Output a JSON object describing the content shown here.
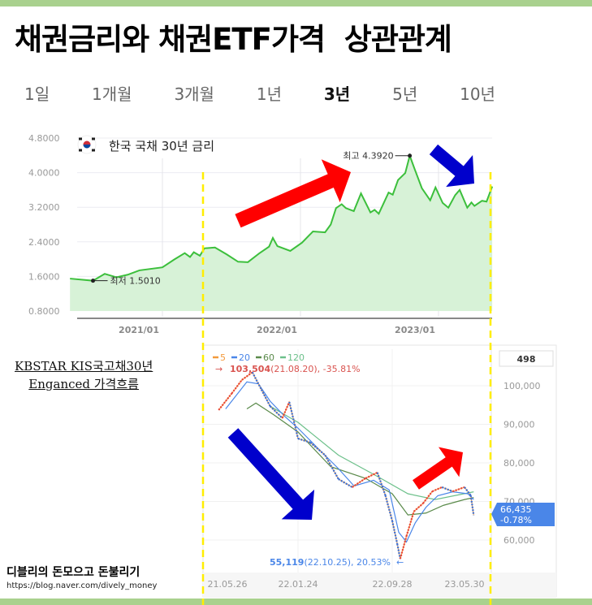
{
  "title": "채권금리와 채권ETF가격  상관관계",
  "tabs": [
    {
      "label": "1일",
      "active": false
    },
    {
      "label": "1개월",
      "active": false
    },
    {
      "label": "3개월",
      "active": false
    },
    {
      "label": "1년",
      "active": false
    },
    {
      "label": "3년",
      "active": true
    },
    {
      "label": "5년",
      "active": false
    },
    {
      "label": "10년",
      "active": false
    }
  ],
  "etf_label": {
    "line1": "KBSTAR KIS국고채30년",
    "line2": "Enganced 가격흐름"
  },
  "footer": {
    "title": "디블리의 돈모으고 돈불리기",
    "url": "https://blog.naver.com/dively_money"
  },
  "colors": {
    "bar": "#a9d18e",
    "rate_line": "#3cbf3c",
    "rate_fill": "#d7f2d7",
    "guide": "#ffee00",
    "up_arrow": "#ff0000",
    "down_arrow": "#0000cc"
  },
  "chart_data": [
    {
      "type": "area",
      "legend": "한국 국채 30년 금리",
      "flag_icon": "korea-flag-icon",
      "ylim": [
        0.8,
        4.8
      ],
      "yticks": [
        "4.8000",
        "4.0000",
        "3.2000",
        "2.4000",
        "1.6000",
        "0.8000"
      ],
      "xticks": [
        "2021/01",
        "2022/01",
        "2023/01"
      ],
      "grid": true,
      "annotations": {
        "max": "최고 4.3920",
        "min": "최저 1.5010"
      },
      "points": [
        [
          "2020-05",
          1.55
        ],
        [
          "2020-07",
          1.501
        ],
        [
          "2020-08",
          1.66
        ],
        [
          "2020-09",
          1.58
        ],
        [
          "2020-10",
          1.64
        ],
        [
          "2020-11",
          1.74
        ],
        [
          "2021-01",
          1.81
        ],
        [
          "2021-02",
          1.99
        ],
        [
          "2021-03",
          2.14
        ],
        [
          "2021-03-15",
          2.05
        ],
        [
          "2021-03-25",
          2.16
        ],
        [
          "2021-04-10",
          2.08
        ],
        [
          "2021-04-22",
          2.25
        ],
        [
          "2021-05-20",
          2.27
        ],
        [
          "2021-06-20",
          2.11
        ],
        [
          "2021-07-20",
          1.94
        ],
        [
          "2021-08-15",
          1.93
        ],
        [
          "2021-09-15",
          2.14
        ],
        [
          "2021-10-10",
          2.29
        ],
        [
          "2021-10-20",
          2.49
        ],
        [
          "2021-11-01",
          2.3
        ],
        [
          "2021-12-05",
          2.19
        ],
        [
          "2022-01-05",
          2.38
        ],
        [
          "2022-02-03",
          2.64
        ],
        [
          "2022-03-07",
          2.62
        ],
        [
          "2022-03-22",
          2.8
        ],
        [
          "2022-04-05",
          3.18
        ],
        [
          "2022-04-20",
          3.27
        ],
        [
          "2022-05-01",
          3.18
        ],
        [
          "2022-05-22",
          3.11
        ],
        [
          "2022-06-10",
          3.52
        ],
        [
          "2022-07-05",
          3.08
        ],
        [
          "2022-07-16",
          3.14
        ],
        [
          "2022-07-27",
          3.05
        ],
        [
          "2022-08-22",
          3.54
        ],
        [
          "2022-09-02",
          3.49
        ],
        [
          "2022-09-16",
          3.83
        ],
        [
          "2022-10-05",
          3.99
        ],
        [
          "2022-10-17",
          4.392
        ],
        [
          "2022-10-30",
          4.08
        ],
        [
          "2022-11-18",
          3.64
        ],
        [
          "2022-12-10",
          3.36
        ],
        [
          "2022-12-24",
          3.66
        ],
        [
          "2023-01-12",
          3.3
        ],
        [
          "2023-01-27",
          3.19
        ],
        [
          "2023-02-14",
          3.48
        ],
        [
          "2023-02-26",
          3.6
        ],
        [
          "2023-03-18",
          3.19
        ],
        [
          "2023-03-29",
          3.31
        ],
        [
          "2023-04-06",
          3.23
        ],
        [
          "2023-04-26",
          3.35
        ],
        [
          "2023-05-08",
          3.33
        ],
        [
          "2023-05-23",
          3.68
        ]
      ]
    },
    {
      "type": "line",
      "legend": [
        {
          "label": "5",
          "color": "#f39a3c"
        },
        {
          "label": "20",
          "color": "#4a86e8"
        },
        {
          "label": "60",
          "color": "#5a8a4a"
        },
        {
          "label": "120",
          "color": "#6cc08a"
        }
      ],
      "max_note": {
        "value": "103,504",
        "rest": "(21.08.20), -35.81%"
      },
      "min_note": {
        "value": "55,119",
        "rest": "(22.10.25), 20.53%"
      },
      "volume_box": "498",
      "current": {
        "price": "66,435",
        "change": "-0.78%"
      },
      "ylim": [
        50000,
        105000
      ],
      "yticks": [
        "100,000",
        "90,000",
        "80,000",
        "70,000",
        "60,000"
      ],
      "xticks": [
        [
          "21.05.26",
          "2021-05-26"
        ],
        [
          "22.01.24",
          "2022-01-24"
        ],
        [
          "22.09.28",
          "2022-09-28"
        ],
        [
          "23.05.30",
          "2023-05-30"
        ]
      ],
      "price": [
        [
          "2021-04-26",
          93700
        ],
        [
          "2021-06-10",
          98000
        ],
        [
          "2021-07-15",
          101500
        ],
        [
          "2021-08-20",
          103504
        ],
        [
          "2021-09-20",
          99000
        ],
        [
          "2021-10-20",
          94700
        ],
        [
          "2021-12-01",
          91600
        ],
        [
          "2021-12-25",
          95800
        ],
        [
          "2022-01-24",
          86300
        ],
        [
          "2022-02-25",
          85300
        ],
        [
          "2022-04-05",
          82000
        ],
        [
          "2022-05-10",
          75800
        ],
        [
          "2022-06-15",
          73700
        ],
        [
          "2022-07-20",
          76000
        ],
        [
          "2022-08-20",
          77500
        ],
        [
          "2022-09-10",
          71600
        ],
        [
          "2022-09-28",
          65000
        ],
        [
          "2022-10-15",
          59000
        ],
        [
          "2022-10-25",
          55119
        ],
        [
          "2022-11-15",
          61000
        ],
        [
          "2022-12-10",
          67400
        ],
        [
          "2023-01-10",
          69500
        ],
        [
          "2023-02-10",
          72600
        ],
        [
          "2023-03-15",
          73700
        ],
        [
          "2023-04-20",
          72600
        ],
        [
          "2023-05-30",
          73700
        ],
        [
          "2023-06-20",
          71600
        ],
        [
          "2023-06-30",
          66435
        ]
      ],
      "ma20": [
        [
          "2021-05-20",
          94000
        ],
        [
          "2021-08-01",
          101000
        ],
        [
          "2021-09-10",
          100500
        ],
        [
          "2021-10-20",
          96000
        ],
        [
          "2021-12-10",
          92000
        ],
        [
          "2022-01-24",
          89000
        ],
        [
          "2022-03-15",
          84000
        ],
        [
          "2022-05-10",
          78500
        ],
        [
          "2022-06-20",
          74000
        ],
        [
          "2022-08-10",
          75500
        ],
        [
          "2022-09-20",
          73000
        ],
        [
          "2022-10-20",
          62000
        ],
        [
          "2022-11-15",
          59500
        ],
        [
          "2022-12-15",
          64500
        ],
        [
          "2023-01-20",
          68500
        ],
        [
          "2023-03-01",
          71500
        ],
        [
          "2023-04-20",
          72500
        ],
        [
          "2023-06-10",
          72000
        ],
        [
          "2023-06-30",
          70500
        ]
      ],
      "ma60": [
        [
          "2021-08-01",
          94000
        ],
        [
          "2021-09-01",
          95500
        ],
        [
          "2021-11-01",
          92500
        ],
        [
          "2022-01-24",
          88000
        ],
        [
          "2022-04-20",
          79000
        ],
        [
          "2022-07-20",
          76000
        ],
        [
          "2022-09-28",
          72000
        ],
        [
          "2022-11-20",
          66500
        ],
        [
          "2023-01-20",
          67000
        ],
        [
          "2023-03-20",
          69000
        ],
        [
          "2023-05-30",
          70500
        ],
        [
          "2023-06-30",
          71000
        ]
      ],
      "ma120": [
        [
          "2021-10-20",
          94700
        ],
        [
          "2022-01-24",
          90500
        ],
        [
          "2022-05-10",
          82000
        ],
        [
          "2022-08-20",
          76500
        ],
        [
          "2022-11-20",
          72000
        ],
        [
          "2023-02-20",
          70500
        ],
        [
          "2023-06-30",
          72500
        ]
      ]
    }
  ]
}
